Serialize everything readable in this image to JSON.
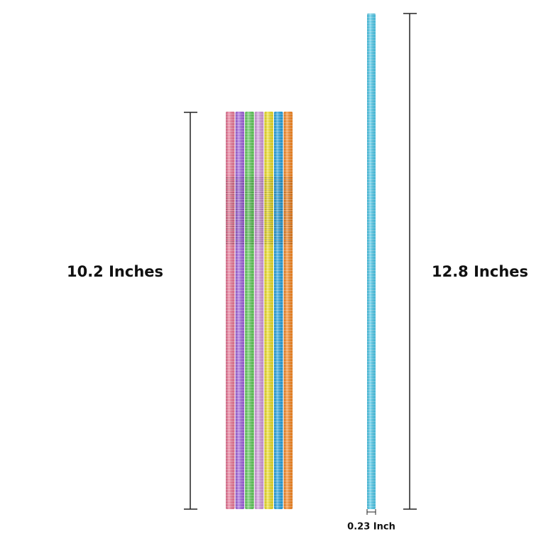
{
  "dimensions": {
    "bundle_length": "10.2 Inches",
    "single_length": "12.8 Inches",
    "diameter": "0.23 Inch"
  }
}
